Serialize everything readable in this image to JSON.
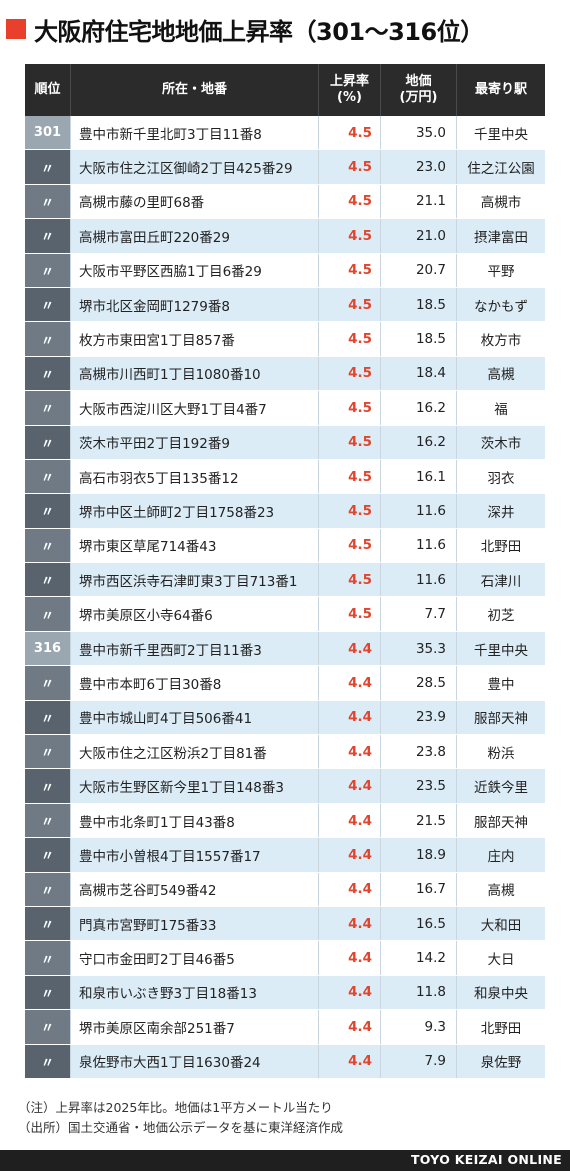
{
  "title": "大阪府住宅地地価上昇率（301〜316位）",
  "accent_color": "#e8402a",
  "rate_color": "#e0462e",
  "headers": {
    "rank": "順位",
    "address": "所在・地番",
    "rate_line1": "上昇率",
    "rate_line2": "(%)",
    "price_line1": "地価",
    "price_line2": "(万円)",
    "station": "最寄り駅"
  },
  "rows": [
    {
      "rank": "301",
      "address": "豊中市新千里北町3丁目11番8",
      "rate": "4.5",
      "price": "35.0",
      "station": "千里中央"
    },
    {
      "rank": "〃",
      "address": "大阪市住之江区御崎2丁目425番29",
      "rate": "4.5",
      "price": "23.0",
      "station": "住之江公園"
    },
    {
      "rank": "〃",
      "address": "高槻市藤の里町68番",
      "rate": "4.5",
      "price": "21.1",
      "station": "高槻市"
    },
    {
      "rank": "〃",
      "address": "高槻市富田丘町220番29",
      "rate": "4.5",
      "price": "21.0",
      "station": "摂津富田"
    },
    {
      "rank": "〃",
      "address": "大阪市平野区西脇1丁目6番29",
      "rate": "4.5",
      "price": "20.7",
      "station": "平野"
    },
    {
      "rank": "〃",
      "address": "堺市北区金岡町1279番8",
      "rate": "4.5",
      "price": "18.5",
      "station": "なかもず"
    },
    {
      "rank": "〃",
      "address": "枚方市東田宮1丁目857番",
      "rate": "4.5",
      "price": "18.5",
      "station": "枚方市"
    },
    {
      "rank": "〃",
      "address": "高槻市川西町1丁目1080番10",
      "rate": "4.5",
      "price": "18.4",
      "station": "高槻"
    },
    {
      "rank": "〃",
      "address": "大阪市西淀川区大野1丁目4番7",
      "rate": "4.5",
      "price": "16.2",
      "station": "福"
    },
    {
      "rank": "〃",
      "address": "茨木市平田2丁目192番9",
      "rate": "4.5",
      "price": "16.2",
      "station": "茨木市"
    },
    {
      "rank": "〃",
      "address": "高石市羽衣5丁目135番12",
      "rate": "4.5",
      "price": "16.1",
      "station": "羽衣"
    },
    {
      "rank": "〃",
      "address": "堺市中区土師町2丁目1758番23",
      "rate": "4.5",
      "price": "11.6",
      "station": "深井"
    },
    {
      "rank": "〃",
      "address": "堺市東区草尾714番43",
      "rate": "4.5",
      "price": "11.6",
      "station": "北野田"
    },
    {
      "rank": "〃",
      "address": "堺市西区浜寺石津町東3丁目713番1",
      "rate": "4.5",
      "price": "11.6",
      "station": "石津川"
    },
    {
      "rank": "〃",
      "address": "堺市美原区小寺64番6",
      "rate": "4.5",
      "price": "7.7",
      "station": "初芝"
    },
    {
      "rank": "316",
      "address": "豊中市新千里西町2丁目11番3",
      "rate": "4.4",
      "price": "35.3",
      "station": "千里中央"
    },
    {
      "rank": "〃",
      "address": "豊中市本町6丁目30番8",
      "rate": "4.4",
      "price": "28.5",
      "station": "豊中"
    },
    {
      "rank": "〃",
      "address": "豊中市城山町4丁目506番41",
      "rate": "4.4",
      "price": "23.9",
      "station": "服部天神"
    },
    {
      "rank": "〃",
      "address": "大阪市住之江区粉浜2丁目81番",
      "rate": "4.4",
      "price": "23.8",
      "station": "粉浜"
    },
    {
      "rank": "〃",
      "address": "大阪市生野区新今里1丁目148番3",
      "rate": "4.4",
      "price": "23.5",
      "station": "近鉄今里"
    },
    {
      "rank": "〃",
      "address": "豊中市北条町1丁目43番8",
      "rate": "4.4",
      "price": "21.5",
      "station": "服部天神"
    },
    {
      "rank": "〃",
      "address": "豊中市小曽根4丁目1557番17",
      "rate": "4.4",
      "price": "18.9",
      "station": "庄内"
    },
    {
      "rank": "〃",
      "address": "高槻市芝谷町549番42",
      "rate": "4.4",
      "price": "16.7",
      "station": "高槻"
    },
    {
      "rank": "〃",
      "address": "門真市宮野町175番33",
      "rate": "4.4",
      "price": "16.5",
      "station": "大和田"
    },
    {
      "rank": "〃",
      "address": "守口市金田町2丁目46番5",
      "rate": "4.4",
      "price": "14.2",
      "station": "大日"
    },
    {
      "rank": "〃",
      "address": "和泉市いぶき野3丁目18番13",
      "rate": "4.4",
      "price": "11.8",
      "station": "和泉中央"
    },
    {
      "rank": "〃",
      "address": "堺市美原区南余部251番7",
      "rate": "4.4",
      "price": "9.3",
      "station": "北野田"
    },
    {
      "rank": "〃",
      "address": "泉佐野市大西1丁目1630番24",
      "rate": "4.4",
      "price": "7.9",
      "station": "泉佐野"
    }
  ],
  "notes": {
    "note": "（注）上昇率は2025年比。地価は1平方メートル当たり",
    "source": "（出所）国土交通省・地価公示データを基に東洋経済作成"
  },
  "footer": "TOYO KEIZAI ONLINE"
}
